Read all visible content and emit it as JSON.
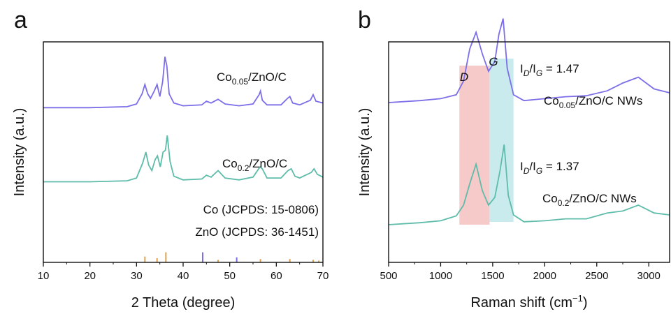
{
  "panels": {
    "a": "a",
    "b": "b"
  },
  "chart_data": [
    {
      "type": "line",
      "panel": "a",
      "xlabel": "2 Theta (degree)",
      "ylabel": "Intensity (a.u.)",
      "xlim": [
        10,
        70
      ],
      "xticks": [
        "10",
        "20",
        "30",
        "40",
        "50",
        "60",
        "70"
      ],
      "ytick_labels": false,
      "series": [
        {
          "name": "Co0.05/ZnO/C",
          "label_main": "Co",
          "label_sub": "0.05",
          "label_rest": "/ZnO/C",
          "color": "#7b6ee8",
          "offset": 1.55,
          "x": [
            10,
            20,
            28,
            30,
            31.2,
            31.8,
            32.4,
            33,
            33.8,
            34.4,
            35,
            35.6,
            36.1,
            36.5,
            37,
            38,
            40,
            44,
            45,
            46,
            47.5,
            49,
            52,
            55,
            56.3,
            56.6,
            57,
            58,
            61,
            62.4,
            62.9,
            63.5,
            65,
            67.3,
            67.9,
            68.5,
            70
          ],
          "y": [
            0.0,
            0.0,
            0.01,
            0.04,
            0.15,
            0.25,
            0.15,
            0.1,
            0.18,
            0.25,
            0.12,
            0.28,
            0.55,
            0.45,
            0.15,
            0.05,
            0.02,
            0.03,
            0.07,
            0.05,
            0.09,
            0.04,
            0.02,
            0.04,
            0.14,
            0.18,
            0.08,
            0.03,
            0.03,
            0.1,
            0.12,
            0.05,
            0.03,
            0.08,
            0.14,
            0.07,
            0.05
          ]
        },
        {
          "name": "Co0.2/ZnO/C",
          "label_main": "Co",
          "label_sub": "0.2",
          "label_rest": "/ZnO/C",
          "color": "#5ebcaa",
          "offset": 0.75,
          "x": [
            10,
            20,
            28,
            30,
            31.3,
            32,
            32.6,
            33.3,
            34,
            34.5,
            35.1,
            35.7,
            36.2,
            36.6,
            37.2,
            38,
            40,
            44,
            45,
            46,
            47.5,
            49,
            52,
            55,
            56.5,
            57,
            58,
            61,
            62.5,
            63.2,
            64,
            65,
            67.5,
            68.1,
            68.8,
            70
          ],
          "y": [
            0.0,
            0.0,
            0.01,
            0.04,
            0.2,
            0.32,
            0.18,
            0.12,
            0.24,
            0.28,
            0.16,
            0.32,
            0.34,
            0.5,
            0.22,
            0.06,
            0.02,
            0.03,
            0.07,
            0.05,
            0.12,
            0.04,
            0.02,
            0.05,
            0.16,
            0.14,
            0.04,
            0.04,
            0.12,
            0.14,
            0.06,
            0.04,
            0.1,
            0.14,
            0.08,
            0.05
          ]
        }
      ],
      "references": [
        {
          "name": "Co (JCPDS: 15-0806)",
          "color": "#7b6ee8",
          "lines": [
            {
              "x": 44.2,
              "h": 0.12
            },
            {
              "x": 51.5,
              "h": 0.06
            }
          ]
        },
        {
          "name": "ZnO (JCPDS: 36-1451)",
          "color": "#e0a050",
          "lines": [
            {
              "x": 31.8,
              "h": 0.07
            },
            {
              "x": 34.4,
              "h": 0.05
            },
            {
              "x": 36.3,
              "h": 0.12
            },
            {
              "x": 47.5,
              "h": 0.03
            },
            {
              "x": 56.6,
              "h": 0.04
            },
            {
              "x": 62.9,
              "h": 0.04
            },
            {
              "x": 67.9,
              "h": 0.03
            },
            {
              "x": 69.1,
              "h": 0.02
            }
          ]
        }
      ]
    },
    {
      "type": "line",
      "panel": "b",
      "xlabel": "Raman shift (cm−1)",
      "xlabel_main": "Raman shift (cm",
      "xlabel_sup": "−1",
      "xlabel_close": ")",
      "ylabel": "Intensity (a.u.)",
      "xlim": [
        500,
        3200
      ],
      "xticks": [
        "500",
        "1000",
        "1500",
        "2000",
        "2500",
        "3000"
      ],
      "ytick_labels": false,
      "bands": [
        {
          "label": "D",
          "x0": 1180,
          "x1": 1470,
          "color": "#f4b8b8"
        },
        {
          "label": "G",
          "x0": 1470,
          "x1": 1700,
          "color": "#b8e4e8"
        }
      ],
      "series": [
        {
          "name": "Co0.05/ZnO/C NWs",
          "label_main": "Co",
          "label_sub": "0.05",
          "label_rest": "/ZnO/C NWs",
          "ratio_label": "ID/IG = 1.47",
          "ratio_value": "1.47",
          "color": "#7b6ee8",
          "offset": 1.25,
          "x": [
            500,
            800,
            1000,
            1150,
            1220,
            1280,
            1340,
            1400,
            1460,
            1520,
            1560,
            1600,
            1640,
            1700,
            1800,
            2000,
            2200,
            2400,
            2600,
            2750,
            2900,
            3050,
            3200
          ],
          "y": [
            0.0,
            0.02,
            0.04,
            0.08,
            0.22,
            0.55,
            0.72,
            0.5,
            0.32,
            0.42,
            0.7,
            0.86,
            0.35,
            0.08,
            0.02,
            0.04,
            0.06,
            0.07,
            0.12,
            0.2,
            0.26,
            0.14,
            0.1
          ]
        },
        {
          "name": "Co0.2/ZnO/C NWs",
          "label_main": "Co",
          "label_sub": "0.2",
          "label_rest": "/ZnO/C NWs",
          "ratio_label": "ID/IG = 1.37",
          "ratio_value": "1.37",
          "color": "#5ebcaa",
          "offset": 0.0,
          "x": [
            500,
            800,
            1000,
            1150,
            1220,
            1280,
            1340,
            1400,
            1460,
            1520,
            1570,
            1610,
            1650,
            1700,
            1800,
            2000,
            2200,
            2400,
            2600,
            2750,
            2900,
            3050,
            3200
          ],
          "y": [
            0.0,
            0.02,
            0.04,
            0.09,
            0.2,
            0.42,
            0.62,
            0.35,
            0.2,
            0.28,
            0.55,
            0.82,
            0.3,
            0.1,
            0.03,
            0.04,
            0.06,
            0.06,
            0.12,
            0.14,
            0.2,
            0.12,
            0.1
          ]
        }
      ]
    }
  ]
}
